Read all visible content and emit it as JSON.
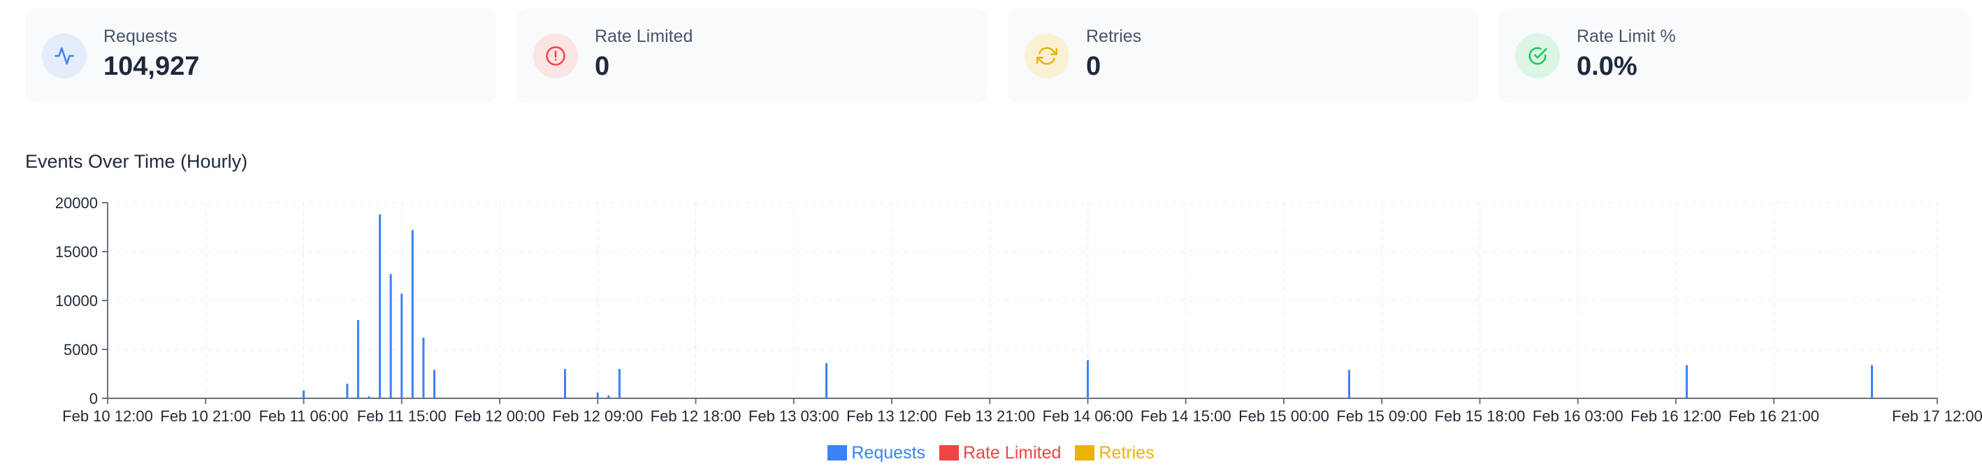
{
  "stats": [
    {
      "label": "Requests",
      "value": "104,927",
      "icon": "activity-icon",
      "color": "#3b82f6",
      "bg": "#e3edfc"
    },
    {
      "label": "Rate Limited",
      "value": "0",
      "icon": "alert-circle-icon",
      "color": "#ef4444",
      "bg": "#fde4e4"
    },
    {
      "label": "Retries",
      "value": "0",
      "icon": "refresh-icon",
      "color": "#eab308",
      "bg": "#fbf1d2"
    },
    {
      "label": "Rate Limit %",
      "value": "0.0%",
      "icon": "check-circle-icon",
      "color": "#22c55e",
      "bg": "#dcf5e4"
    }
  ],
  "chart_title": "Events Over Time (Hourly)",
  "chart_data": {
    "type": "bar",
    "title": "Events Over Time (Hourly)",
    "xlabel": "",
    "ylabel": "",
    "ylim": [
      0,
      20000
    ],
    "yticks": [
      "0",
      "5000",
      "10000",
      "15000",
      "20000"
    ],
    "xlim": [
      "Feb 10 12:00",
      "Feb 17 12:00"
    ],
    "xtick_labels": [
      "Feb 10 12:00",
      "Feb 10 21:00",
      "Feb 11 06:00",
      "Feb 11 15:00",
      "Feb 12 00:00",
      "Feb 12 09:00",
      "Feb 12 18:00",
      "Feb 13 03:00",
      "Feb 13 12:00",
      "Feb 13 21:00",
      "Feb 14 06:00",
      "Feb 14 15:00",
      "Feb 15 00:00",
      "Feb 15 09:00",
      "Feb 15 18:00",
      "Feb 16 03:00",
      "Feb 16 12:00",
      "Feb 16 21:00",
      "Feb 17 12:00"
    ],
    "grid": true,
    "legend": "bottom",
    "series": [
      {
        "name": "Requests",
        "color": "#3b82f6",
        "points": [
          {
            "x": "Feb 11 06:00",
            "y": 800
          },
          {
            "x": "Feb 11 10:00",
            "y": 1500
          },
          {
            "x": "Feb 11 11:00",
            "y": 8000
          },
          {
            "x": "Feb 11 12:00",
            "y": 200
          },
          {
            "x": "Feb 11 13:00",
            "y": 18800
          },
          {
            "x": "Feb 11 14:00",
            "y": 12700
          },
          {
            "x": "Feb 11 15:00",
            "y": 10700
          },
          {
            "x": "Feb 11 16:00",
            "y": 17200
          },
          {
            "x": "Feb 11 17:00",
            "y": 6200
          },
          {
            "x": "Feb 11 18:00",
            "y": 2900
          },
          {
            "x": "Feb 12 06:00",
            "y": 3000
          },
          {
            "x": "Feb 12 09:00",
            "y": 600
          },
          {
            "x": "Feb 12 10:00",
            "y": 300
          },
          {
            "x": "Feb 12 11:00",
            "y": 3000
          },
          {
            "x": "Feb 13 06:00",
            "y": 3600
          },
          {
            "x": "Feb 14 06:00",
            "y": 3900
          },
          {
            "x": "Feb 15 06:00",
            "y": 2900
          },
          {
            "x": "Feb 16 13:00",
            "y": 3400
          },
          {
            "x": "Feb 17 06:00",
            "y": 3400
          }
        ]
      },
      {
        "name": "Rate Limited",
        "color": "#ef4444",
        "points": []
      },
      {
        "name": "Retries",
        "color": "#eab308",
        "points": []
      }
    ]
  }
}
